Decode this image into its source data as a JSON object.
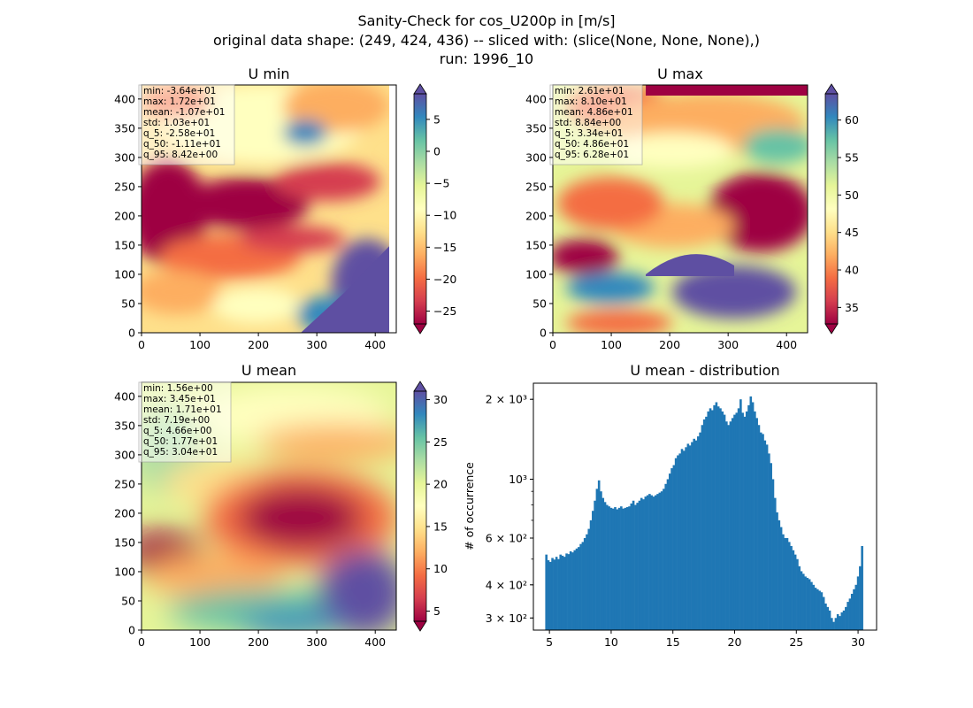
{
  "suptitle": [
    "Sanity-Check for cos_U200p in [m/s]",
    "original data shape: (249, 424, 436) -- sliced with: (slice(None, None, None),)",
    "run: 1996_10"
  ],
  "colors": {
    "histogram_bar": "#1f77b4",
    "spectral_colormap": [
      "#9e0142",
      "#d53e4f",
      "#f46d43",
      "#fdae61",
      "#fee08b",
      "#ffffbf",
      "#e6f598",
      "#abdda4",
      "#66c2a5",
      "#3288bd",
      "#5e4fa2"
    ]
  },
  "panels": {
    "umin": {
      "title": "U min",
      "xticks": [
        "0",
        "100",
        "200",
        "300",
        "400"
      ],
      "yticks": [
        "0",
        "50",
        "100",
        "150",
        "200",
        "250",
        "300",
        "350",
        "400"
      ],
      "cbar_ticks": [
        {
          "value": 5,
          "label": "5"
        },
        {
          "value": 0,
          "label": "0"
        },
        {
          "value": -5,
          "label": "−5"
        },
        {
          "value": -10,
          "label": "−10"
        },
        {
          "value": -15,
          "label": "−15"
        },
        {
          "value": -20,
          "label": "−20"
        },
        {
          "value": -25,
          "label": "−25"
        }
      ],
      "cbar_range": [
        -27.0,
        9.0
      ],
      "stats": [
        "min: -3.64e+01",
        "max: 1.72e+01",
        "mean: -1.07e+01",
        "std: 1.03e+01",
        "q_5: -2.58e+01",
        "q_50: -1.11e+01",
        "q_95: 8.42e+00"
      ]
    },
    "umax": {
      "title": "U max",
      "xticks": [
        "0",
        "100",
        "200",
        "300",
        "400"
      ],
      "yticks": [
        "0",
        "50",
        "100",
        "150",
        "200",
        "250",
        "300",
        "350",
        "400"
      ],
      "cbar_ticks": [
        {
          "value": 60,
          "label": "60"
        },
        {
          "value": 55,
          "label": "55"
        },
        {
          "value": 50,
          "label": "50"
        },
        {
          "value": 45,
          "label": "45"
        },
        {
          "value": 40,
          "label": "40"
        },
        {
          "value": 35,
          "label": "35"
        }
      ],
      "cbar_range": [
        32.8,
        63.5
      ],
      "stats": [
        "min: 2.61e+01",
        "max: 8.10e+01",
        "mean: 4.86e+01",
        "std: 8.84e+00",
        "q_5: 3.34e+01",
        "q_50: 4.86e+01",
        "q_95: 6.28e+01"
      ]
    },
    "umean": {
      "title": "U mean",
      "xticks": [
        "0",
        "100",
        "200",
        "300",
        "400"
      ],
      "yticks": [
        "0",
        "50",
        "100",
        "150",
        "200",
        "250",
        "300",
        "350",
        "400"
      ],
      "cbar_ticks": [
        {
          "value": 30,
          "label": "30"
        },
        {
          "value": 25,
          "label": "25"
        },
        {
          "value": 20,
          "label": "20"
        },
        {
          "value": 15,
          "label": "15"
        },
        {
          "value": 10,
          "label": "10"
        },
        {
          "value": 5,
          "label": "5"
        }
      ],
      "cbar_range": [
        3.8,
        31.0
      ],
      "stats": [
        "min: 1.56e+00",
        "max: 3.45e+01",
        "mean: 1.71e+01",
        "std: 7.19e+00",
        "q_5: 4.66e+00",
        "q_50: 1.77e+01",
        "q_95: 3.04e+01"
      ]
    }
  },
  "chart_data": {
    "type": "bar",
    "title": "U mean - distribution",
    "xlabel": "",
    "ylabel": "# of occurrence",
    "yscale": "log",
    "xlim": [
      3.7,
      31.5
    ],
    "ylim": [
      270,
      2300
    ],
    "xticks": [
      "5",
      "10",
      "15",
      "20",
      "25",
      "30"
    ],
    "yticks": [
      {
        "value": 300,
        "label": "3 × 10²"
      },
      {
        "value": 400,
        "label": "4 × 10²"
      },
      {
        "value": 600,
        "label": "6 × 10²"
      },
      {
        "value": 1000,
        "label": "10³"
      },
      {
        "value": 2000,
        "label": "2 × 10³"
      }
    ],
    "bin_range": [
      4.66,
      30.4
    ],
    "counts": [
      520,
      495,
      488,
      505,
      498,
      510,
      500,
      520,
      515,
      510,
      525,
      522,
      535,
      530,
      540,
      548,
      555,
      570,
      580,
      600,
      620,
      650,
      700,
      760,
      830,
      920,
      990,
      900,
      850,
      820,
      800,
      790,
      780,
      775,
      785,
      770,
      780,
      790,
      775,
      780,
      785,
      790,
      810,
      830,
      800,
      815,
      830,
      850,
      840,
      860,
      870,
      880,
      870,
      860,
      870,
      880,
      890,
      900,
      920,
      960,
      1000,
      1050,
      1100,
      1130,
      1200,
      1230,
      1250,
      1300,
      1280,
      1320,
      1360,
      1340,
      1380,
      1420,
      1400,
      1450,
      1500,
      1600,
      1680,
      1720,
      1800,
      1850,
      1820,
      1900,
      1950,
      1880,
      1850,
      1800,
      1750,
      1650,
      1600,
      1650,
      1700,
      1750,
      1780,
      1850,
      2000,
      1780,
      1720,
      1800,
      1900,
      2050,
      1950,
      1800,
      1700,
      1600,
      1500,
      1480,
      1400,
      1350,
      1250,
      1150,
      1000,
      850,
      750,
      700,
      660,
      620,
      600,
      600,
      580,
      560,
      540,
      520,
      500,
      470,
      450,
      440,
      430,
      425,
      420,
      410,
      400,
      390,
      385,
      380,
      375,
      360,
      340,
      330,
      320,
      300,
      290,
      300,
      310,
      305,
      315,
      320,
      330,
      345,
      355,
      370,
      385,
      400,
      430,
      470,
      560
    ]
  }
}
